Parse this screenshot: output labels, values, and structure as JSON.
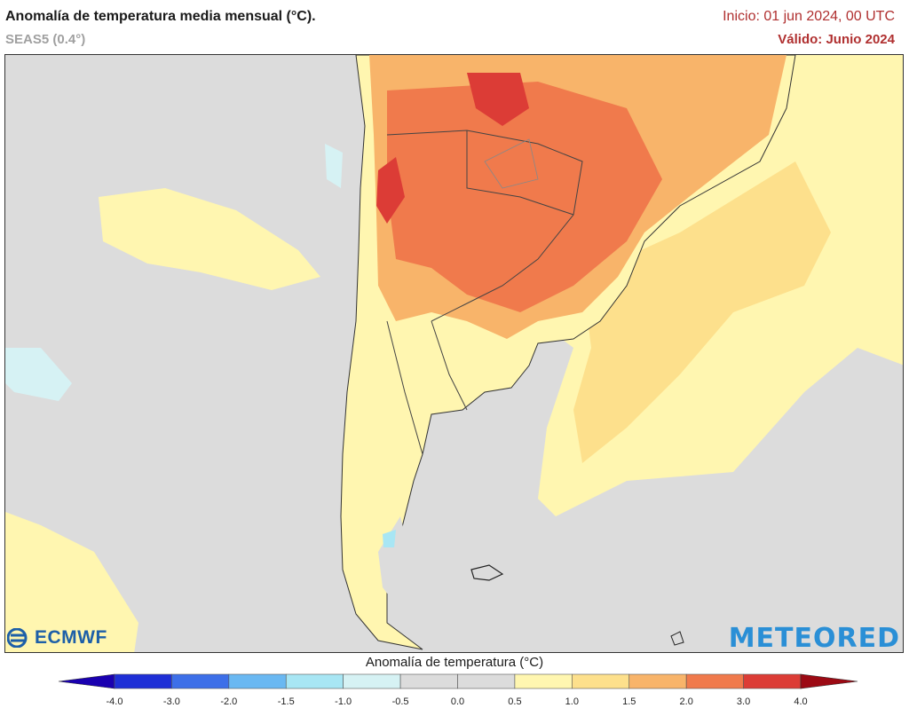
{
  "header": {
    "title": "Anomalía de temperatura media mensual (°C).",
    "model": "SEAS5 (0.4°)",
    "init": "Inicio: 01 jun 2024, 00 UTC",
    "valid": "Válido: Junio 2024"
  },
  "logos": {
    "left": "ECMWF",
    "right": "METEORED"
  },
  "colorbar": {
    "title": "Anomalía de temperatura (°C)",
    "ticks": [
      "-4.0",
      "-3.0",
      "-2.0",
      "-1.5",
      "-1.0",
      "-0.5",
      "0.0",
      "0.5",
      "1.0",
      "1.5",
      "2.0",
      "3.0",
      "4.0"
    ],
    "colors": [
      "#1e2fd6",
      "#3d6fe8",
      "#6ab8f2",
      "#a8e6f4",
      "#d6f2f4",
      "#dcdcdc",
      "#dcdcdc",
      "#fff6b0",
      "#fde08c",
      "#f8b46a",
      "#f07a4c",
      "#dc3c36"
    ],
    "end_low": "#1a00b0",
    "end_high": "#9c0a14"
  }
}
